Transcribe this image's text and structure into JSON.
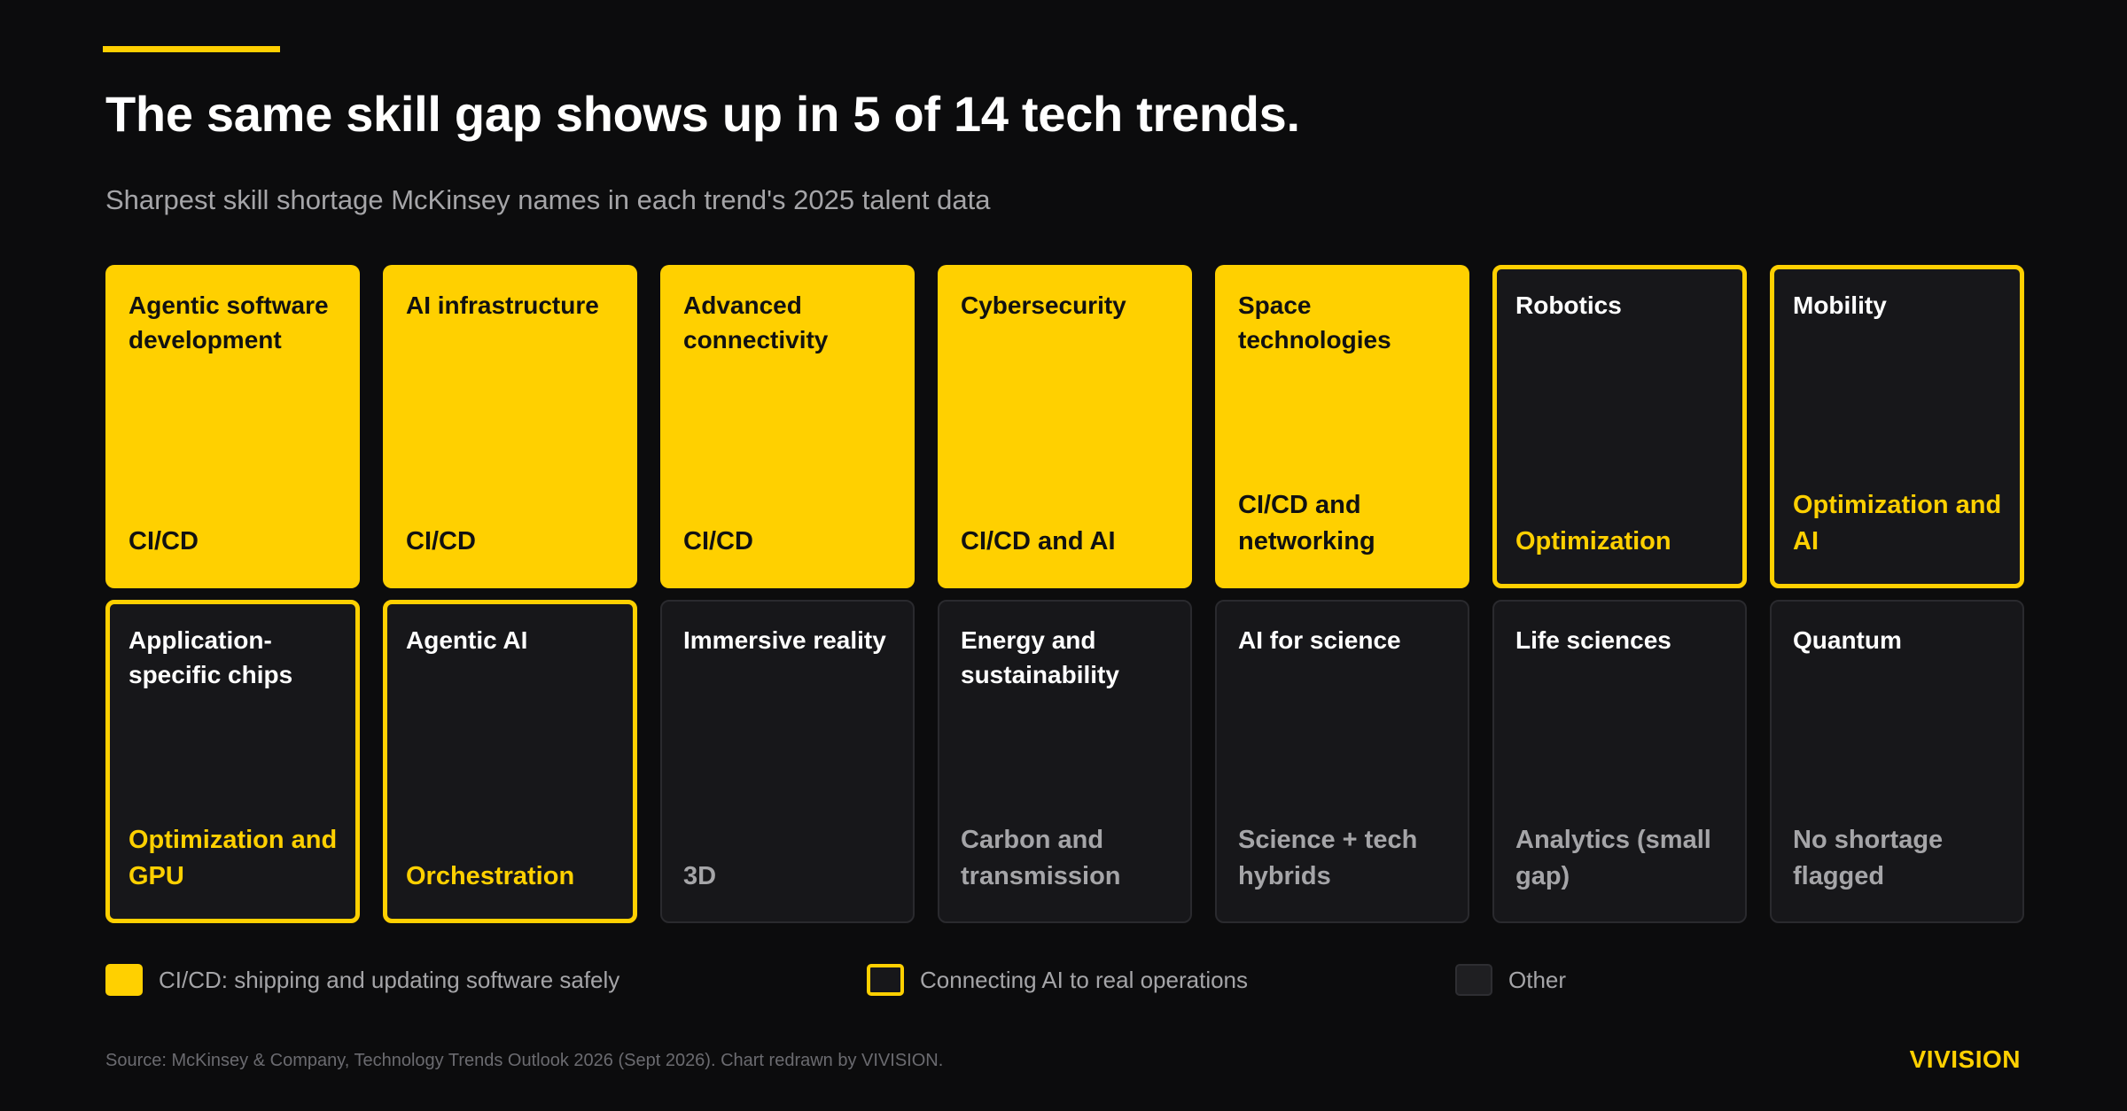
{
  "header": {
    "title": "The same skill gap shows up in 5 of 14 tech trends.",
    "subtitle": "Sharpest skill shortage McKinsey names in each trend's 2025 talent data"
  },
  "colors": {
    "accent": "#ffd000",
    "background": "#0c0c0d",
    "card_dark": "#17171a",
    "muted_text": "#a5a5a8"
  },
  "trends": [
    {
      "name": "Agentic software development",
      "shortage": "CI/CD",
      "category": "cicd"
    },
    {
      "name": "AI infrastructure",
      "shortage": "CI/CD",
      "category": "cicd"
    },
    {
      "name": "Advanced connectivity",
      "shortage": "CI/CD",
      "category": "cicd"
    },
    {
      "name": "Cybersecurity",
      "shortage": "CI/CD and AI",
      "category": "cicd"
    },
    {
      "name": "Space technologies",
      "shortage": "CI/CD and networking",
      "category": "cicd"
    },
    {
      "name": "Robotics",
      "shortage": "Optimization",
      "category": "ai"
    },
    {
      "name": "Mobility",
      "shortage": "Optimization and AI",
      "category": "ai"
    },
    {
      "name": "Application-specific chips",
      "shortage": "Optimization and GPU",
      "category": "ai"
    },
    {
      "name": "Agentic AI",
      "shortage": "Orchestration",
      "category": "ai"
    },
    {
      "name": "Immersive reality",
      "shortage": "3D",
      "category": "other"
    },
    {
      "name": "Energy and sustainability",
      "shortage": "Carbon and transmission",
      "category": "other"
    },
    {
      "name": "AI for science",
      "shortage": "Science + tech hybrids",
      "category": "other"
    },
    {
      "name": "Life sciences",
      "shortage": "Analytics (small gap)",
      "category": "other"
    },
    {
      "name": "Quantum",
      "shortage": "No shortage flagged",
      "category": "other"
    }
  ],
  "legend": {
    "cicd": "CI/CD: shipping and updating software safely",
    "ai": "Connecting AI to real operations",
    "other": "Other"
  },
  "footer": {
    "source": "Source: McKinsey & Company, Technology Trends Outlook 2026 (Sept 2026). Chart redrawn by VIVISION.",
    "brand": "VIVISION"
  }
}
